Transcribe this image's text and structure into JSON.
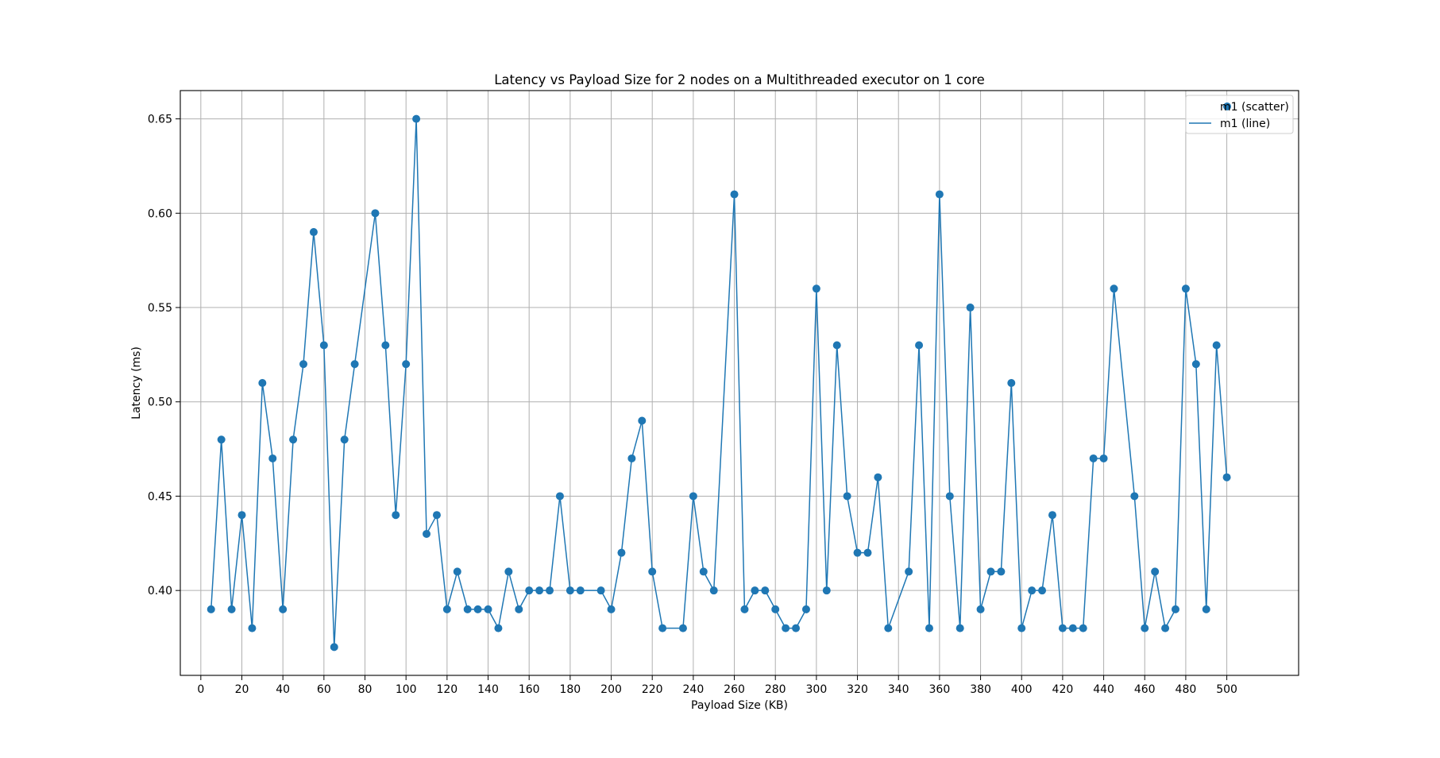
{
  "chart_data": {
    "type": "scatter",
    "title": "Latency vs Payload Size for 2 nodes on a Multithreaded executor on 1 core",
    "xlabel": "Payload Size (KB)",
    "ylabel": "Latency (ms)",
    "xlim": [
      -10,
      535
    ],
    "ylim": [
      0.355,
      0.665
    ],
    "xticks": [
      0,
      20,
      40,
      60,
      80,
      100,
      120,
      140,
      160,
      180,
      200,
      220,
      240,
      260,
      280,
      300,
      320,
      340,
      360,
      380,
      400,
      420,
      440,
      460,
      480,
      500
    ],
    "yticks": [
      0.4,
      0.45,
      0.5,
      0.55,
      0.6,
      0.65
    ],
    "ytick_labels": [
      "0.40",
      "0.45",
      "0.50",
      "0.55",
      "0.60",
      "0.65"
    ],
    "grid": true,
    "legend_position": "top-right",
    "color": "#1f77b4",
    "series": [
      {
        "name": "m1 (scatter)",
        "kind": "scatter",
        "x": [
          5,
          10,
          15,
          20,
          25,
          30,
          35,
          40,
          45,
          50,
          55,
          60,
          65,
          70,
          75,
          85,
          90,
          95,
          100,
          105,
          110,
          115,
          120,
          125,
          130,
          135,
          140,
          145,
          150,
          155,
          160,
          165,
          170,
          175,
          180,
          185,
          195,
          200,
          205,
          210,
          215,
          220,
          225,
          235,
          240,
          245,
          250,
          260,
          265,
          270,
          275,
          280,
          285,
          290,
          295,
          300,
          305,
          310,
          315,
          320,
          325,
          330,
          335,
          345,
          350,
          355,
          360,
          365,
          370,
          375,
          380,
          385,
          390,
          395,
          400,
          405,
          410,
          415,
          420,
          425,
          430,
          435,
          440,
          445,
          455,
          460,
          465,
          470,
          475,
          480,
          485,
          490,
          495,
          500
        ],
        "y": [
          0.39,
          0.48,
          0.39,
          0.44,
          0.38,
          0.51,
          0.47,
          0.39,
          0.48,
          0.52,
          0.59,
          0.53,
          0.37,
          0.48,
          0.52,
          0.6,
          0.53,
          0.44,
          0.52,
          0.65,
          0.43,
          0.44,
          0.39,
          0.41,
          0.39,
          0.39,
          0.39,
          0.38,
          0.41,
          0.39,
          0.4,
          0.4,
          0.4,
          0.45,
          0.4,
          0.4,
          0.4,
          0.39,
          0.42,
          0.47,
          0.49,
          0.41,
          0.38,
          0.38,
          0.45,
          0.41,
          0.4,
          0.61,
          0.39,
          0.4,
          0.4,
          0.39,
          0.38,
          0.38,
          0.39,
          0.56,
          0.4,
          0.53,
          0.45,
          0.42,
          0.42,
          0.46,
          0.38,
          0.41,
          0.53,
          0.38,
          0.61,
          0.45,
          0.38,
          0.55,
          0.39,
          0.41,
          0.41,
          0.51,
          0.38,
          0.4,
          0.4,
          0.44,
          0.38,
          0.38,
          0.38,
          0.47,
          0.47,
          0.56,
          0.45,
          0.38,
          0.41,
          0.38,
          0.39,
          0.56,
          0.52,
          0.39,
          0.53,
          0.46
        ]
      },
      {
        "name": "m1 (line)",
        "kind": "line",
        "same_as": "m1 (scatter)"
      }
    ]
  }
}
